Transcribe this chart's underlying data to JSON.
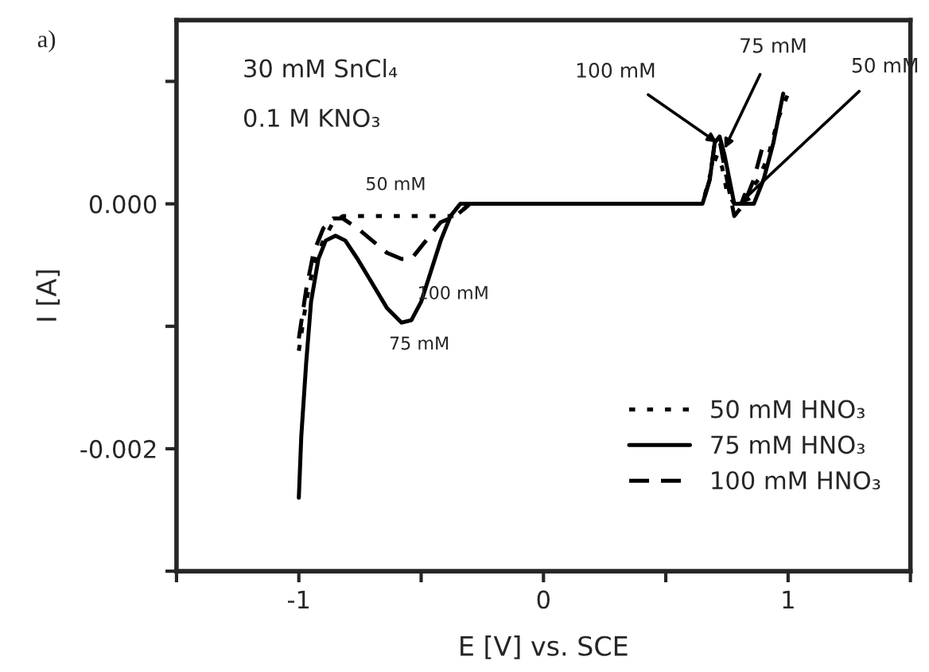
{
  "chart_data": {
    "type": "line",
    "xlabel": "E [V] vs. SCE",
    "ylabel": "I [A]",
    "xlim": [
      -1.5,
      1.5
    ],
    "xticks": [
      {
        "value": -1.5,
        "label": null
      },
      -1,
      {
        "value": -0.5,
        "label": null
      },
      0,
      {
        "value": 0.5,
        "label": null
      },
      1,
      {
        "value": 1.5,
        "label": null
      }
    ],
    "ylim": [
      -0.003,
      0.0015
    ],
    "yticks": [
      {
        "value": -0.003,
        "label": null
      },
      {
        "value": -0.002,
        "label": "-0.002"
      },
      {
        "value": -0.001,
        "label": null
      },
      {
        "value": 0,
        "label": "0.000"
      },
      {
        "value": 0.001,
        "label": null
      }
    ],
    "grid": false,
    "legend": "bottom right",
    "marker": "none",
    "series": [
      {
        "name": "50 mM HNO₃",
        "color": "#000000",
        "line_style": "dotted",
        "x": [
          -1.0,
          -0.97,
          -0.94,
          -0.9,
          -0.86,
          -0.82,
          -0.76,
          -0.6,
          -0.45,
          -0.36,
          -0.3,
          -0.2,
          0,
          0.4,
          0.65,
          0.69,
          0.71,
          0.73,
          0.75,
          0.78,
          0.81,
          0.84,
          0.88,
          0.92,
          0.96,
          1.0
        ],
        "values": [
          -0.0012,
          -0.0008,
          -0.0005,
          -0.0003,
          -0.00015,
          -0.0001,
          -0.0001,
          -0.0001,
          -0.0001,
          -0.0001,
          0,
          0,
          0,
          0,
          0,
          0.0003,
          0.0004,
          0.0003,
          0.0001,
          0,
          0,
          0.0001,
          0.0002,
          0.0004,
          0.0007,
          0.0009
        ]
      },
      {
        "name": "75 mM HNO₃",
        "color": "#000000",
        "line_style": "solid",
        "x": [
          -1.0,
          -0.99,
          -0.97,
          -0.95,
          -0.92,
          -0.89,
          -0.85,
          -0.81,
          -0.76,
          -0.7,
          -0.64,
          -0.58,
          -0.54,
          -0.5,
          -0.46,
          -0.42,
          -0.38,
          -0.34,
          -0.3,
          -0.2,
          0,
          0.2,
          0.4,
          0.6,
          0.65,
          0.68,
          0.7,
          0.72,
          0.74,
          0.76,
          0.78,
          0.8,
          0.83,
          0.86,
          0.9,
          0.94,
          0.98
        ],
        "values": [
          -0.0024,
          -0.0019,
          -0.0013,
          -0.0008,
          -0.00045,
          -0.0003,
          -0.00026,
          -0.0003,
          -0.00045,
          -0.00065,
          -0.00085,
          -0.00097,
          -0.00095,
          -0.0008,
          -0.00055,
          -0.0003,
          -0.0001,
          0,
          0,
          0,
          0,
          0,
          0,
          0,
          0,
          0.0002,
          0.0005,
          0.00055,
          0.0004,
          0.0002,
          0,
          0,
          0,
          0,
          0.0002,
          0.0005,
          0.0009
        ]
      },
      {
        "name": "100 mM HNO₃",
        "color": "#000000",
        "line_style": "dashed",
        "x": [
          -1.0,
          -0.97,
          -0.94,
          -0.9,
          -0.86,
          -0.82,
          -0.76,
          -0.7,
          -0.64,
          -0.58,
          -0.54,
          -0.48,
          -0.42,
          -0.36,
          -0.3,
          -0.2,
          0,
          0.4,
          0.65,
          0.68,
          0.7,
          0.72,
          0.74,
          0.76,
          0.78,
          0.82,
          0.86,
          0.9
        ],
        "values": [
          -0.0011,
          -0.0007,
          -0.0004,
          -0.0002,
          -0.00012,
          -0.00012,
          -0.0002,
          -0.0003,
          -0.0004,
          -0.00045,
          -0.00045,
          -0.0003,
          -0.00015,
          -0.0001,
          0,
          0,
          0,
          0,
          0,
          0.0002,
          0.0005,
          0.00052,
          0.0003,
          0.0001,
          -0.0001,
          0,
          0.0002,
          0.0005
        ]
      }
    ],
    "annotations": [
      "a)",
      "30 mM SnCl₄",
      "0.1 M KNO₃",
      {
        "text": "50 mM",
        "x": -0.55,
        "y": -0.0001
      },
      {
        "text": "100 mM",
        "x": -0.55,
        "y": -0.00045
      },
      {
        "text": "75 mM",
        "x": -0.58,
        "y": -0.00097
      },
      {
        "text": "100 mM",
        "x": 0.71,
        "y": 0.0005
      },
      {
        "text": "75 mM",
        "x": 0.74,
        "y": 0.00045
      },
      {
        "text": "50 mM",
        "x": 0.8,
        "y": 0.0
      }
    ]
  }
}
